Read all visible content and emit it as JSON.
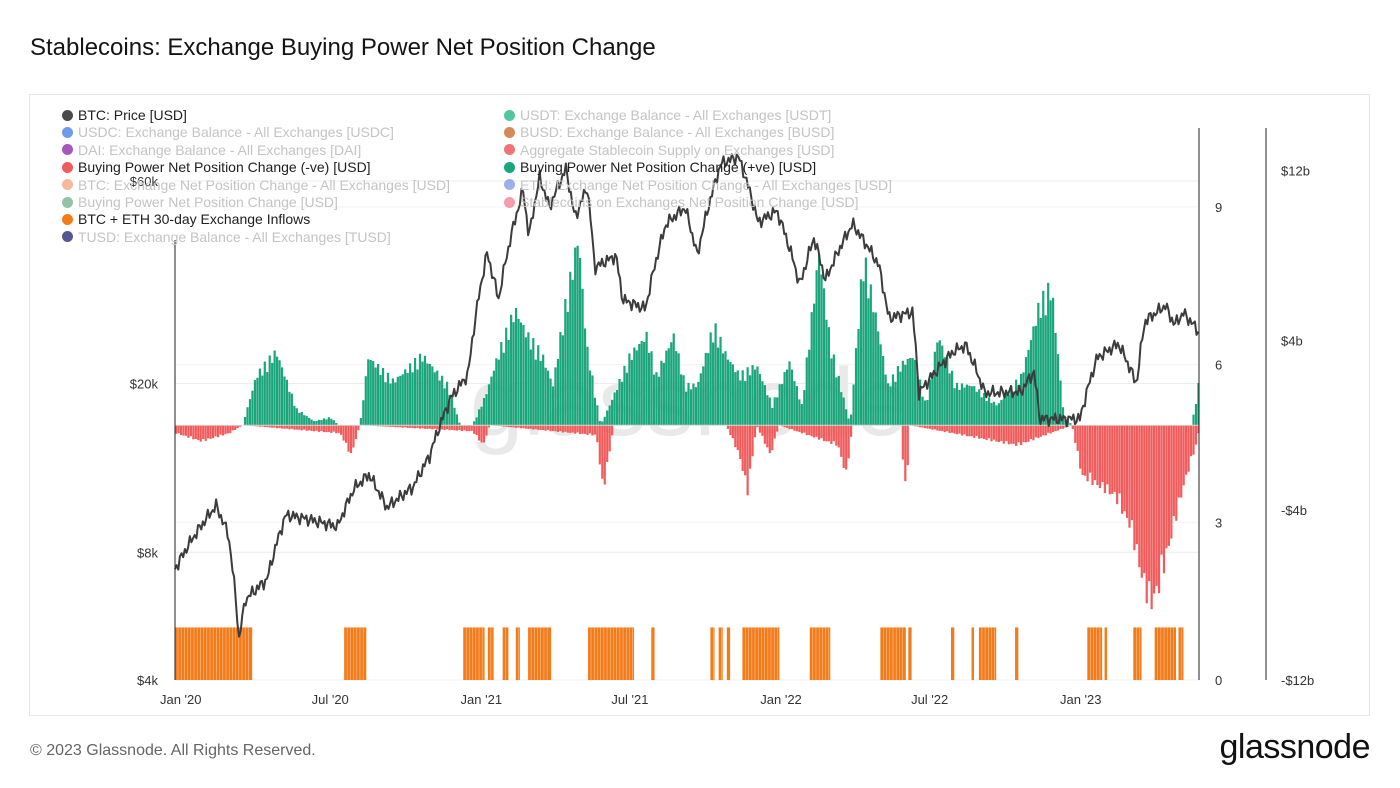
{
  "header": {
    "title": "Stablecoins: Exchange Buying Power Net Position Change"
  },
  "footer": {
    "copyright": "© 2023 Glassnode. All Rights Reserved.",
    "brand": "glassnode"
  },
  "watermark": "glassnode",
  "legend": [
    {
      "label": "BTC: Price [USD]",
      "color": "#4a4a4a",
      "active": true,
      "col": 0,
      "row": 0
    },
    {
      "label": "USDT: Exchange Balance - All Exchanges [USDT]",
      "color": "#18b47f",
      "active": false,
      "col": 1,
      "row": 0
    },
    {
      "label": "USDC: Exchange Balance - All Exchanges [USDC]",
      "color": "#3d7be6",
      "active": false,
      "col": 0,
      "row": 1
    },
    {
      "label": "BUSD: Exchange Balance - All Exchanges [BUSD]",
      "color": "#c8621f",
      "active": false,
      "col": 1,
      "row": 1
    },
    {
      "label": "DAI: Exchange Balance - All Exchanges [DAI]",
      "color": "#8a1ea8",
      "active": false,
      "col": 0,
      "row": 2
    },
    {
      "label": "Aggregate Stablecoin Supply on Exchanges [USD]",
      "color": "#ee4444",
      "active": false,
      "col": 1,
      "row": 2
    },
    {
      "label": "Buying Power Net Position Change (-ve) [USD]",
      "color": "#f25b5b",
      "active": true,
      "col": 0,
      "row": 3
    },
    {
      "label": "Buying Power Net Position Change (+ve) [USD]",
      "color": "#1aa57a",
      "active": true,
      "col": 1,
      "row": 3
    },
    {
      "label": "BTC: Exchange Net Position Change - All Exchanges [USD]",
      "color": "#f4a07a",
      "active": false,
      "col": 0,
      "row": 4
    },
    {
      "label": "ETH: Exchange Net Position Change - All Exchanges [USD]",
      "color": "#7b96e6",
      "active": false,
      "col": 1,
      "row": 4
    },
    {
      "label": "Buying Power Net Position Change [USD]",
      "color": "#6fae8c",
      "active": false,
      "col": 0,
      "row": 5
    },
    {
      "label": "Stablecoins on Exchanges Net Position Change [USD]",
      "color": "#f27c8e",
      "active": false,
      "col": 1,
      "row": 5
    },
    {
      "label": "BTC + ETH 30-day Exchange Inflows",
      "color": "#f47b1a",
      "active": true,
      "col": 0,
      "row": 6
    },
    {
      "label": "TUSD: Exchange Balance - All Exchanges [TUSD]",
      "color": "#1c1f6b",
      "active": false,
      "col": 0,
      "row": 7
    }
  ],
  "chart_data": {
    "type": "line",
    "colors": {
      "price": "#3c3c3c",
      "positive": "#1aa57a",
      "negative": "#f25b5b",
      "inflows": "#f47b1a"
    },
    "x_range": [
      "2019-12-25",
      "2023-05-25"
    ],
    "x_ticks": [
      {
        "date": "2020-01-01",
        "label": "Jan '20"
      },
      {
        "date": "2020-07-01",
        "label": "Jul '20"
      },
      {
        "date": "2021-01-01",
        "label": "Jan '21"
      },
      {
        "date": "2021-07-01",
        "label": "Jul '21"
      },
      {
        "date": "2022-01-01",
        "label": "Jan '22"
      },
      {
        "date": "2022-07-01",
        "label": "Jul '22"
      },
      {
        "date": "2023-01-01",
        "label": "Jan '23"
      }
    ],
    "y_left": {
      "label": "",
      "scale": "log",
      "range": [
        4000,
        80000
      ],
      "ticks": [
        {
          "value": 4000,
          "label": "$4k"
        },
        {
          "value": 8000,
          "label": "$8k"
        },
        {
          "value": 20000,
          "label": "$20k"
        },
        {
          "value": 60000,
          "label": "$60k"
        }
      ]
    },
    "y_mid": {
      "label": "",
      "range": [
        0,
        10.5
      ],
      "ticks": [
        {
          "value": 0,
          "label": "0"
        },
        {
          "value": 3,
          "label": "3"
        },
        {
          "value": 6,
          "label": "6"
        },
        {
          "value": 9,
          "label": "9"
        }
      ]
    },
    "y_right": {
      "label": "",
      "range": [
        -12,
        14
      ],
      "ticks": [
        {
          "value": -12,
          "label": "-$12b"
        },
        {
          "value": -4,
          "label": "-$4b"
        },
        {
          "value": 4,
          "label": "$4b"
        },
        {
          "value": 12,
          "label": "$12b"
        }
      ]
    },
    "series": [
      {
        "name": "BTC: Price [USD]",
        "axis": "left",
        "kind": "line",
        "points": [
          [
            "2019-12-25",
            7300
          ],
          [
            "2020-01-15",
            8600
          ],
          [
            "2020-02-13",
            10300
          ],
          [
            "2020-02-28",
            8800
          ],
          [
            "2020-03-12",
            5000
          ],
          [
            "2020-03-20",
            6200
          ],
          [
            "2020-04-15",
            6900
          ],
          [
            "2020-05-08",
            9800
          ],
          [
            "2020-06-01",
            9600
          ],
          [
            "2020-07-10",
            9200
          ],
          [
            "2020-07-30",
            11300
          ],
          [
            "2020-08-17",
            12200
          ],
          [
            "2020-09-08",
            10200
          ],
          [
            "2020-10-10",
            11400
          ],
          [
            "2020-10-30",
            13500
          ],
          [
            "2020-11-25",
            18500
          ],
          [
            "2020-12-16",
            21000
          ],
          [
            "2021-01-08",
            40500
          ],
          [
            "2021-01-22",
            31500
          ],
          [
            "2021-02-21",
            57000
          ],
          [
            "2021-02-28",
            44000
          ],
          [
            "2021-03-13",
            61000
          ],
          [
            "2021-03-25",
            52000
          ],
          [
            "2021-04-14",
            64000
          ],
          [
            "2021-04-25",
            49000
          ],
          [
            "2021-05-10",
            58000
          ],
          [
            "2021-05-19",
            37500
          ],
          [
            "2021-06-14",
            40000
          ],
          [
            "2021-06-22",
            31500
          ],
          [
            "2021-07-20",
            30000
          ],
          [
            "2021-08-14",
            47500
          ],
          [
            "2021-09-06",
            52000
          ],
          [
            "2021-09-21",
            40000
          ],
          [
            "2021-10-20",
            66000
          ],
          [
            "2021-11-10",
            68500
          ],
          [
            "2021-12-04",
            48000
          ],
          [
            "2021-12-27",
            51000
          ],
          [
            "2022-01-24",
            34000
          ],
          [
            "2022-02-10",
            44000
          ],
          [
            "2022-02-24",
            35000
          ],
          [
            "2022-03-29",
            47500
          ],
          [
            "2022-04-30",
            38000
          ],
          [
            "2022-05-12",
            28500
          ],
          [
            "2022-06-10",
            29500
          ],
          [
            "2022-06-18",
            19000
          ],
          [
            "2022-07-30",
            23800
          ],
          [
            "2022-08-14",
            24600
          ],
          [
            "2022-09-06",
            19000
          ],
          [
            "2022-10-20",
            19100
          ],
          [
            "2022-11-05",
            21300
          ],
          [
            "2022-11-12",
            16500
          ],
          [
            "2022-12-31",
            16500
          ],
          [
            "2023-01-21",
            23000
          ],
          [
            "2023-02-16",
            24800
          ],
          [
            "2023-03-10",
            19900
          ],
          [
            "2023-03-20",
            28000
          ],
          [
            "2023-04-14",
            30500
          ],
          [
            "2023-04-25",
            27500
          ],
          [
            "2023-05-06",
            29300
          ],
          [
            "2023-05-25",
            26500
          ]
        ]
      },
      {
        "name": "Buying Power Net Position Change (+ve) [USD]",
        "axis": "right",
        "kind": "bar",
        "unit": "USD billions",
        "points": [
          [
            "2020-03-15",
            0
          ],
          [
            "2020-04-01",
            2.5
          ],
          [
            "2020-04-25",
            3.7
          ],
          [
            "2020-05-20",
            0.8
          ],
          [
            "2020-06-10",
            0.2
          ],
          [
            "2020-06-30",
            0.4
          ],
          [
            "2020-07-10",
            0
          ],
          [
            "2020-08-05",
            0
          ],
          [
            "2020-08-15",
            3.4
          ],
          [
            "2020-09-15",
            2.2
          ],
          [
            "2020-10-20",
            3.5
          ],
          [
            "2020-11-20",
            2.0
          ],
          [
            "2020-12-05",
            0
          ],
          [
            "2020-12-20",
            0
          ],
          [
            "2021-01-05",
            1.5
          ],
          [
            "2021-01-20",
            3.5
          ],
          [
            "2021-02-10",
            5.8
          ],
          [
            "2021-02-25",
            4.5
          ],
          [
            "2021-03-15",
            3.5
          ],
          [
            "2021-03-28",
            2.0
          ],
          [
            "2021-04-10",
            5.5
          ],
          [
            "2021-04-28",
            9.5
          ],
          [
            "2021-05-08",
            4.0
          ],
          [
            "2021-05-25",
            0
          ],
          [
            "2021-06-05",
            1.0
          ],
          [
            "2021-06-30",
            3.5
          ],
          [
            "2021-07-20",
            4.5
          ],
          [
            "2021-08-01",
            2.5
          ],
          [
            "2021-08-22",
            4.5
          ],
          [
            "2021-09-05",
            2.0
          ],
          [
            "2021-09-20",
            2.0
          ],
          [
            "2021-10-10",
            5.0
          ],
          [
            "2021-10-25",
            3.5
          ],
          [
            "2021-11-10",
            2.5
          ],
          [
            "2021-12-01",
            3.0
          ],
          [
            "2021-12-20",
            1.0
          ],
          [
            "2022-01-10",
            3.2
          ],
          [
            "2022-01-25",
            1.0
          ],
          [
            "2022-02-15",
            8.7
          ],
          [
            "2022-03-01",
            4.0
          ],
          [
            "2022-03-25",
            0
          ],
          [
            "2022-04-10",
            8.5
          ],
          [
            "2022-04-25",
            5.5
          ],
          [
            "2022-05-10",
            2.0
          ],
          [
            "2022-05-25",
            3.0
          ],
          [
            "2022-06-10",
            3.5
          ],
          [
            "2022-06-25",
            1.0
          ],
          [
            "2022-07-10",
            4.5
          ],
          [
            "2022-08-01",
            2.0
          ],
          [
            "2022-08-20",
            2.0
          ],
          [
            "2022-09-20",
            1.0
          ],
          [
            "2022-10-20",
            2.5
          ],
          [
            "2022-11-10",
            6.0
          ],
          [
            "2022-11-25",
            7.0
          ],
          [
            "2022-12-10",
            0.5
          ],
          [
            "2022-12-20",
            0
          ],
          [
            "2023-05-15",
            0
          ],
          [
            "2023-05-25",
            2.5
          ]
        ]
      },
      {
        "name": "Buying Power Net Position Change (-ve) [USD]",
        "axis": "right",
        "kind": "bar",
        "unit": "USD billions",
        "points": [
          [
            "2019-12-25",
            -0.4
          ],
          [
            "2020-01-25",
            -0.8
          ],
          [
            "2020-02-28",
            -0.4
          ],
          [
            "2020-03-15",
            0
          ],
          [
            "2020-07-12",
            -0.4
          ],
          [
            "2020-07-25",
            -1.5
          ],
          [
            "2020-08-05",
            0
          ],
          [
            "2020-12-20",
            -0.3
          ],
          [
            "2021-01-02",
            -1.0
          ],
          [
            "2021-01-10",
            0
          ],
          [
            "2021-05-20",
            -0.5
          ],
          [
            "2021-05-28",
            -3.3
          ],
          [
            "2021-06-10",
            0
          ],
          [
            "2021-10-25",
            0
          ],
          [
            "2021-11-10",
            -1.5
          ],
          [
            "2021-11-20",
            -3.3
          ],
          [
            "2021-12-01",
            0
          ],
          [
            "2021-12-18",
            -1.5
          ],
          [
            "2021-12-28",
            0
          ],
          [
            "2022-03-10",
            -1.0
          ],
          [
            "2022-03-20",
            -2.5
          ],
          [
            "2022-03-28",
            0
          ],
          [
            "2022-05-25",
            0
          ],
          [
            "2022-06-01",
            -3.8
          ],
          [
            "2022-06-05",
            0
          ],
          [
            "2022-10-15",
            -1.0
          ],
          [
            "2022-12-20",
            0
          ],
          [
            "2023-01-01",
            -2.5
          ],
          [
            "2023-02-10",
            -3.5
          ],
          [
            "2023-03-01",
            -5.0
          ],
          [
            "2023-03-15",
            -7.5
          ],
          [
            "2023-03-25",
            -9.0
          ],
          [
            "2023-04-05",
            -8.0
          ],
          [
            "2023-04-20",
            -5.5
          ],
          [
            "2023-05-05",
            -3.0
          ],
          [
            "2023-05-20",
            -1.0
          ],
          [
            "2023-05-25",
            0
          ]
        ]
      },
      {
        "name": "BTC + ETH 30-day Exchange Inflows",
        "axis": "mid",
        "kind": "step",
        "level": 1,
        "ranges": [
          [
            "2019-12-25",
            "2020-03-28"
          ],
          [
            "2020-07-18",
            "2020-08-14"
          ],
          [
            "2020-12-10",
            "2021-01-05"
          ],
          [
            "2021-01-09",
            "2021-01-16"
          ],
          [
            "2021-01-27",
            "2021-02-03"
          ],
          [
            "2021-02-12",
            "2021-02-17"
          ],
          [
            "2021-02-27",
            "2021-03-27"
          ],
          [
            "2021-05-11",
            "2021-07-06"
          ],
          [
            "2021-07-27",
            "2021-07-31"
          ],
          [
            "2021-10-07",
            "2021-10-12"
          ],
          [
            "2021-10-17",
            "2021-10-22"
          ],
          [
            "2021-10-27",
            "2021-10-31"
          ],
          [
            "2021-11-15",
            "2021-12-30"
          ],
          [
            "2022-02-05",
            "2022-03-02"
          ],
          [
            "2022-05-02",
            "2022-06-02"
          ],
          [
            "2022-06-05",
            "2022-06-09"
          ],
          [
            "2022-07-27",
            "2022-07-31"
          ],
          [
            "2022-08-21",
            "2022-08-24"
          ],
          [
            "2022-08-30",
            "2022-09-20"
          ],
          [
            "2022-10-13",
            "2022-10-17"
          ],
          [
            "2023-01-09",
            "2023-01-27"
          ],
          [
            "2023-01-30",
            "2023-02-02"
          ],
          [
            "2023-03-06",
            "2023-03-16"
          ],
          [
            "2023-04-01",
            "2023-04-27"
          ],
          [
            "2023-04-30",
            "2023-05-06"
          ]
        ]
      }
    ]
  }
}
